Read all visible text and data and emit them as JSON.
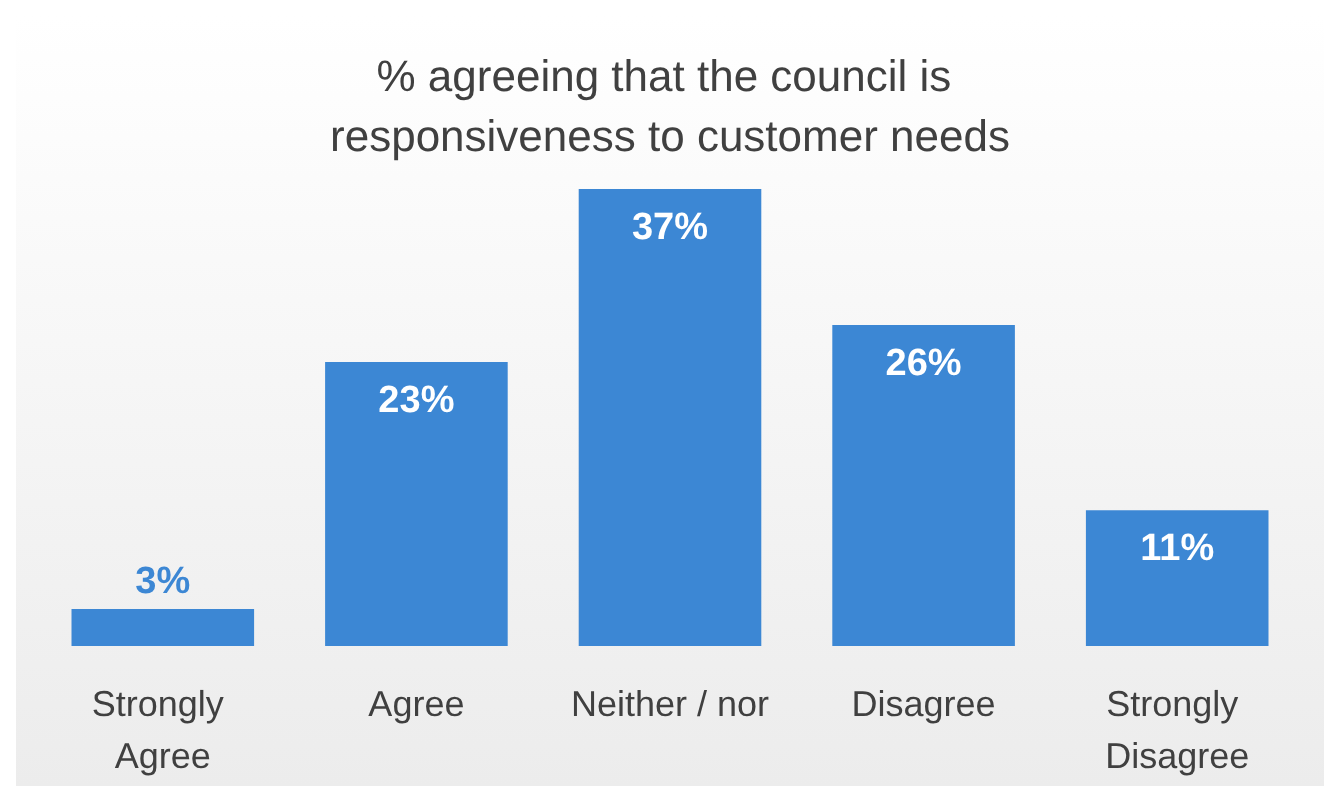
{
  "chart_data": {
    "type": "bar",
    "title": "% agreeing that the council is responsiveness to customer needs",
    "categories": [
      "Strongly Agree",
      "Agree",
      "Neither / nor",
      "Disagree",
      "Strongly Disagree"
    ],
    "values": [
      3,
      23,
      37,
      26,
      11
    ],
    "value_labels": [
      "3%",
      "23%",
      "37%",
      "26%",
      "11%"
    ],
    "color": "#3c87d4"
  }
}
